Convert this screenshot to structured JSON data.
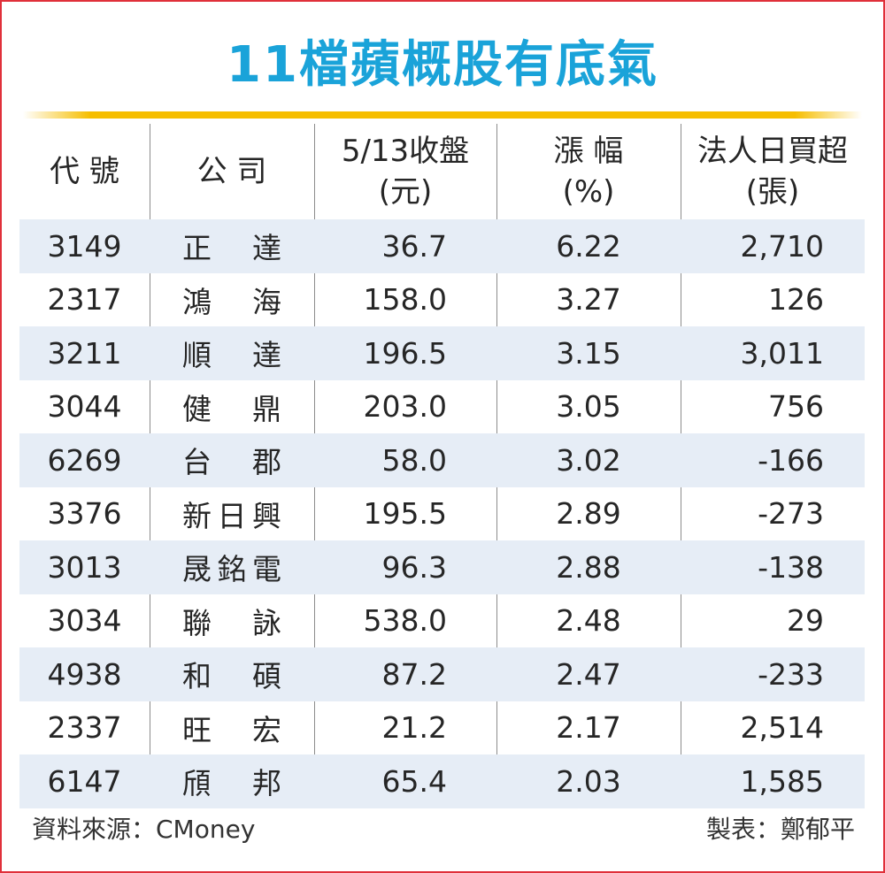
{
  "title": "11檔蘋概股有底氣",
  "headers": {
    "code": "代 號",
    "company": "公 司",
    "close_line1": "5/13收盤",
    "close_line2": "(元)",
    "change_line1": "漲 幅",
    "change_line2": "(%)",
    "net_buy_line1": "法人日買超",
    "net_buy_line2": "(張)"
  },
  "rows": [
    {
      "code": "3149",
      "company": "正達",
      "close": "36.7",
      "change": "6.22",
      "net_buy": "2,710"
    },
    {
      "code": "2317",
      "company": "鴻海",
      "close": "158.0",
      "change": "3.27",
      "net_buy": "126"
    },
    {
      "code": "3211",
      "company": "順達",
      "close": "196.5",
      "change": "3.15",
      "net_buy": "3,011"
    },
    {
      "code": "3044",
      "company": "健鼎",
      "close": "203.0",
      "change": "3.05",
      "net_buy": "756"
    },
    {
      "code": "6269",
      "company": "台郡",
      "close": "58.0",
      "change": "3.02",
      "net_buy": "-166"
    },
    {
      "code": "3376",
      "company": "新日興",
      "close": "195.5",
      "change": "2.89",
      "net_buy": "-273"
    },
    {
      "code": "3013",
      "company": "晟銘電",
      "close": "96.3",
      "change": "2.88",
      "net_buy": "-138"
    },
    {
      "code": "3034",
      "company": "聯詠",
      "close": "538.0",
      "change": "2.48",
      "net_buy": "29"
    },
    {
      "code": "4938",
      "company": "和碩",
      "close": "87.2",
      "change": "2.47",
      "net_buy": "-233"
    },
    {
      "code": "2337",
      "company": "旺宏",
      "close": "21.2",
      "change": "2.17",
      "net_buy": "2,514"
    },
    {
      "code": "6147",
      "company": "頎邦",
      "close": "65.4",
      "change": "2.03",
      "net_buy": "1,585"
    }
  ],
  "footer": {
    "source": "資料來源：CMoney",
    "author": "製表：鄭郁平"
  },
  "colors": {
    "title": "#1aa3d9",
    "border": "#e0303a",
    "rule": "#f6be00",
    "row_shade": "#e6edf6"
  }
}
